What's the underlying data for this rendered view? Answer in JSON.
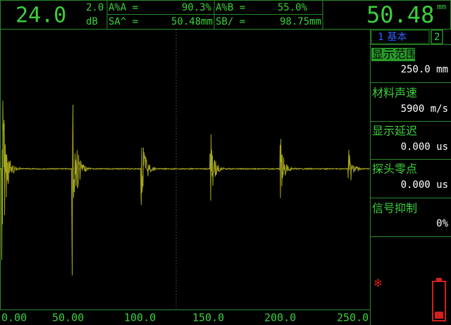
{
  "header": {
    "gain": "24.0",
    "gain_step": "2.0",
    "gain_unit": "dB",
    "readings": [
      {
        "label": "A%A =",
        "value": "90.3%"
      },
      {
        "label": "A%B =",
        "value": "55.0%"
      },
      {
        "label": "SA^ =",
        "value": "50.48mm"
      },
      {
        "label": "SB/ =",
        "value": "98.75mm"
      }
    ],
    "main_value": "50.48",
    "main_unit": "mm"
  },
  "x_axis_labels": [
    "0.00",
    "50.00",
    "100.0",
    "150.0",
    "200.0",
    "250.0"
  ],
  "menu": {
    "tabs": [
      "1 基本",
      "2"
    ],
    "items": [
      {
        "label": "显示范围",
        "value": "250.0 mm"
      },
      {
        "label": "材料声速",
        "value": "5900 m/s"
      },
      {
        "label": "显示延迟",
        "value": "0.000 us"
      },
      {
        "label": "探头零点",
        "value": "0.000 us"
      },
      {
        "label": "信号抑制",
        "value": "0%"
      }
    ]
  }
}
